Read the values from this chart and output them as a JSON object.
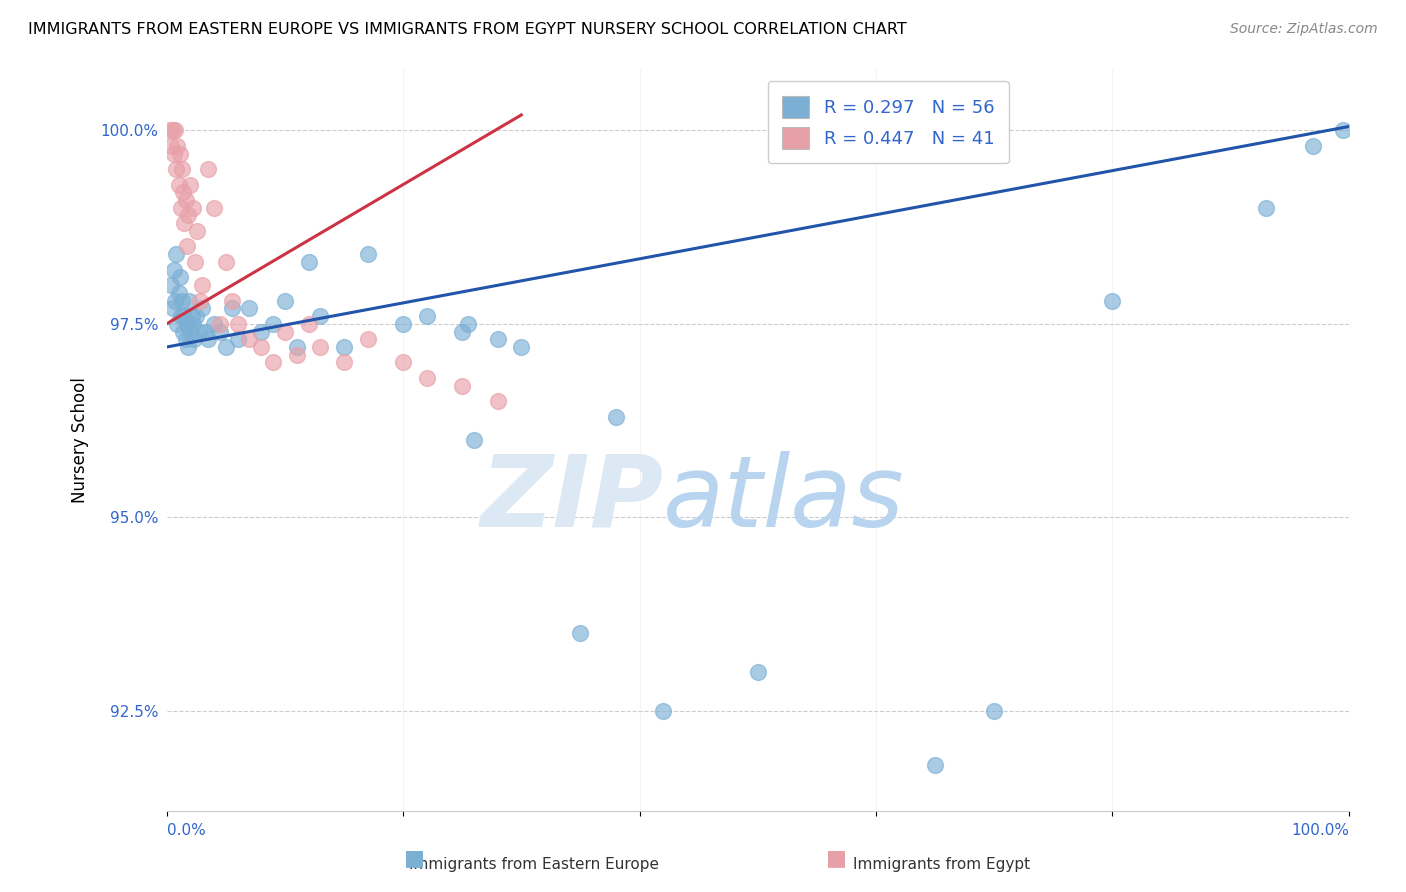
{
  "title": "IMMIGRANTS FROM EASTERN EUROPE VS IMMIGRANTS FROM EGYPT NURSERY SCHOOL CORRELATION CHART",
  "source": "Source: ZipAtlas.com",
  "ylabel": "Nursery School",
  "xlim": [
    0.0,
    100.0
  ],
  "ylim": [
    91.2,
    100.8
  ],
  "yticks": [
    92.5,
    95.0,
    97.5,
    100.0
  ],
  "ytick_labels": [
    "92.5%",
    "95.0%",
    "97.5%",
    "100.0%"
  ],
  "blue_color": "#7bafd4",
  "pink_color": "#e8a0a8",
  "blue_line_color": "#2255aa",
  "pink_line_color": "#cc3344",
  "legend_R_blue": "R = 0.297",
  "legend_N_blue": "N = 56",
  "legend_R_pink": "R = 0.447",
  "legend_N_pink": "N = 41",
  "blue_line_x0": 0.0,
  "blue_line_y0": 97.2,
  "blue_line_x1": 100.0,
  "blue_line_y1": 100.05,
  "pink_line_x0": 0.0,
  "pink_line_y0": 97.5,
  "pink_line_x1": 30.0,
  "pink_line_y1": 100.2,
  "blue_scatter_x": [
    0.4,
    0.5,
    0.6,
    0.7,
    0.8,
    0.9,
    1.0,
    1.1,
    1.2,
    1.3,
    1.4,
    1.5,
    1.6,
    1.7,
    1.8,
    1.9,
    2.0,
    2.1,
    2.2,
    2.3,
    2.5,
    2.7,
    3.0,
    3.2,
    3.5,
    4.0,
    4.5,
    5.0,
    5.5,
    6.0,
    7.0,
    8.0,
    9.0,
    10.0,
    11.0,
    12.0,
    13.0,
    15.0,
    17.0,
    20.0,
    22.0,
    25.0,
    25.5,
    26.0,
    28.0,
    30.0,
    35.0,
    38.0,
    42.0,
    50.0,
    65.0,
    70.0,
    80.0,
    93.0,
    97.0,
    99.5
  ],
  "blue_scatter_y": [
    98.0,
    97.7,
    98.2,
    97.8,
    98.4,
    97.5,
    97.9,
    98.1,
    97.6,
    97.8,
    97.4,
    97.6,
    97.3,
    97.5,
    97.2,
    97.8,
    97.4,
    97.6,
    97.5,
    97.3,
    97.6,
    97.4,
    97.7,
    97.4,
    97.3,
    97.5,
    97.4,
    97.2,
    97.7,
    97.3,
    97.7,
    97.4,
    97.5,
    97.8,
    97.2,
    98.3,
    97.6,
    97.2,
    98.4,
    97.5,
    97.6,
    97.4,
    97.5,
    96.0,
    97.3,
    97.2,
    93.5,
    96.3,
    92.5,
    93.0,
    91.8,
    92.5,
    97.8,
    99.0,
    99.8,
    100.0
  ],
  "pink_scatter_x": [
    0.3,
    0.4,
    0.5,
    0.6,
    0.7,
    0.8,
    0.9,
    1.0,
    1.1,
    1.2,
    1.3,
    1.4,
    1.5,
    1.6,
    1.7,
    1.8,
    2.0,
    2.2,
    2.4,
    2.6,
    2.8,
    3.0,
    3.5,
    4.0,
    4.5,
    5.0,
    5.5,
    6.0,
    7.0,
    8.0,
    9.0,
    10.0,
    11.0,
    12.0,
    13.0,
    15.0,
    17.0,
    20.0,
    22.0,
    25.0,
    28.0
  ],
  "pink_scatter_y": [
    100.0,
    99.8,
    100.0,
    99.7,
    100.0,
    99.5,
    99.8,
    99.3,
    99.7,
    99.0,
    99.5,
    99.2,
    98.8,
    99.1,
    98.5,
    98.9,
    99.3,
    99.0,
    98.3,
    98.7,
    97.8,
    98.0,
    99.5,
    99.0,
    97.5,
    98.3,
    97.8,
    97.5,
    97.3,
    97.2,
    97.0,
    97.4,
    97.1,
    97.5,
    97.2,
    97.0,
    97.3,
    97.0,
    96.8,
    96.7,
    96.5
  ]
}
